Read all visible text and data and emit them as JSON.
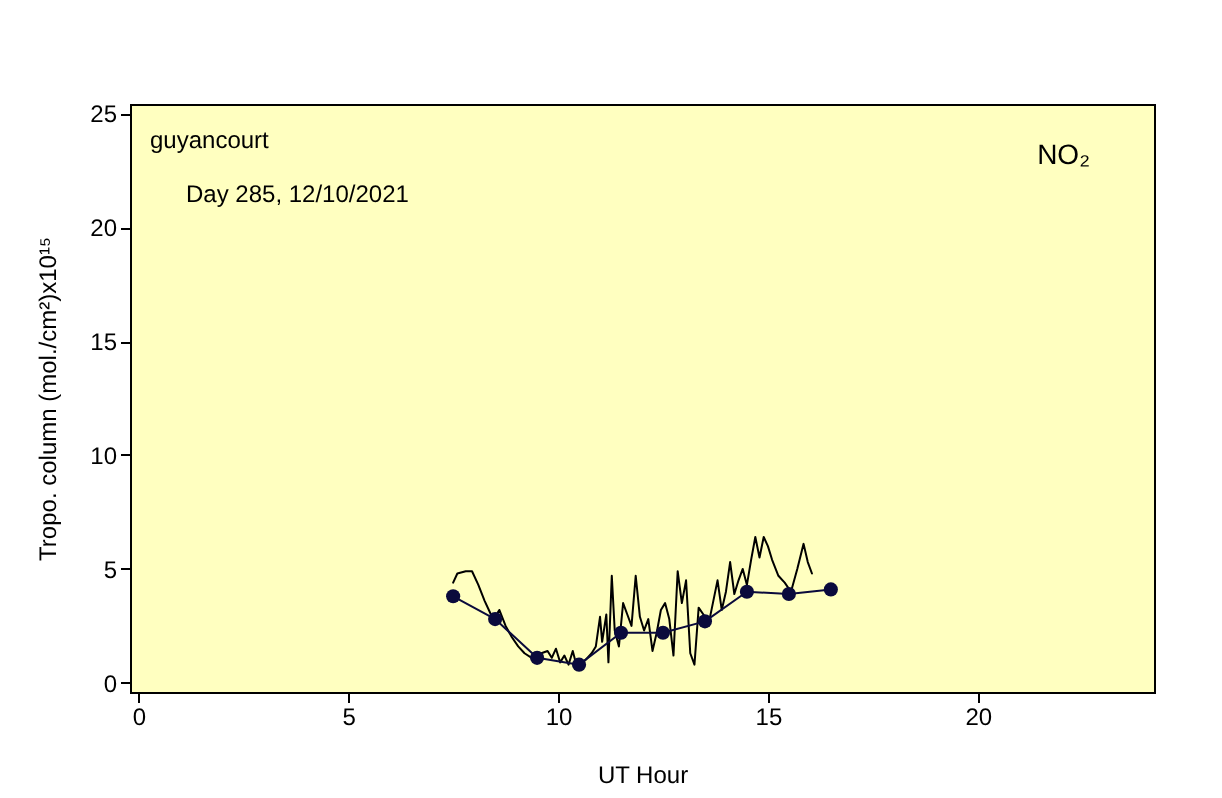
{
  "chart_data": {
    "type": "line",
    "xlabel": "UT Hour",
    "ylabel": "Tropo. column (mol./cm²)x10¹⁵",
    "annotations": [
      "guyancourt",
      "Day 285, 12/10/2021",
      "NO₂"
    ],
    "xlim": [
      -0.2,
      24.2
    ],
    "xticks": [
      0,
      5,
      10,
      15,
      20
    ],
    "ylim": [
      -0.4,
      25.4
    ],
    "yticks": [
      0,
      5,
      10,
      15,
      20,
      25
    ],
    "grid": false,
    "legend": false,
    "series": [
      {
        "color": "#000000",
        "marker": "none",
        "x": [
          7.5,
          7.6,
          7.8,
          7.95,
          8.1,
          8.25,
          8.4,
          8.5,
          8.6,
          8.75,
          8.9,
          9.05,
          9.2,
          9.37,
          9.5,
          9.6,
          9.75,
          9.85,
          9.95,
          10.05,
          10.15,
          10.25,
          10.35,
          10.45,
          10.55,
          10.65,
          10.8,
          10.9,
          11.0,
          11.05,
          11.15,
          11.2,
          11.28,
          11.35,
          11.45,
          11.55,
          11.65,
          11.75,
          11.85,
          11.95,
          12.05,
          12.15,
          12.25,
          12.35,
          12.45,
          12.55,
          12.65,
          12.75,
          12.85,
          12.95,
          13.05,
          13.15,
          13.25,
          13.35,
          13.5,
          13.6,
          13.7,
          13.8,
          13.9,
          14.0,
          14.1,
          14.2,
          14.3,
          14.4,
          14.5,
          14.6,
          14.7,
          14.8,
          14.9,
          15.0,
          15.1,
          15.25,
          15.4,
          15.55,
          15.7,
          15.85,
          15.95,
          16.05
        ],
        "values": [
          4.4,
          4.8,
          4.9,
          4.9,
          4.3,
          3.6,
          3.0,
          2.9,
          3.2,
          2.5,
          2.0,
          1.6,
          1.3,
          1.1,
          1.2,
          1.3,
          1.4,
          1.1,
          1.5,
          0.9,
          1.2,
          0.8,
          1.4,
          0.7,
          0.9,
          1.0,
          1.3,
          1.6,
          2.9,
          1.8,
          3.0,
          0.9,
          4.7,
          2.3,
          1.6,
          3.5,
          3.0,
          2.5,
          4.7,
          2.9,
          2.3,
          2.8,
          1.4,
          2.2,
          3.2,
          3.5,
          2.8,
          1.2,
          4.9,
          3.5,
          4.5,
          1.3,
          0.8,
          3.3,
          2.9,
          2.7,
          3.6,
          4.5,
          3.2,
          4.0,
          5.3,
          3.9,
          4.5,
          5.0,
          4.3,
          5.4,
          6.4,
          5.5,
          6.4,
          6.0,
          5.4,
          4.7,
          4.4,
          4.0,
          5.0,
          6.1,
          5.3,
          4.8
        ]
      },
      {
        "color": "#0a0a3c",
        "marker": "circle",
        "x": [
          7.5,
          8.5,
          9.5,
          10.5,
          11.5,
          12.5,
          13.5,
          14.5,
          15.5,
          16.5
        ],
        "values": [
          3.8,
          2.8,
          1.1,
          0.8,
          2.2,
          2.2,
          2.7,
          4.0,
          3.9,
          4.1
        ]
      }
    ]
  }
}
